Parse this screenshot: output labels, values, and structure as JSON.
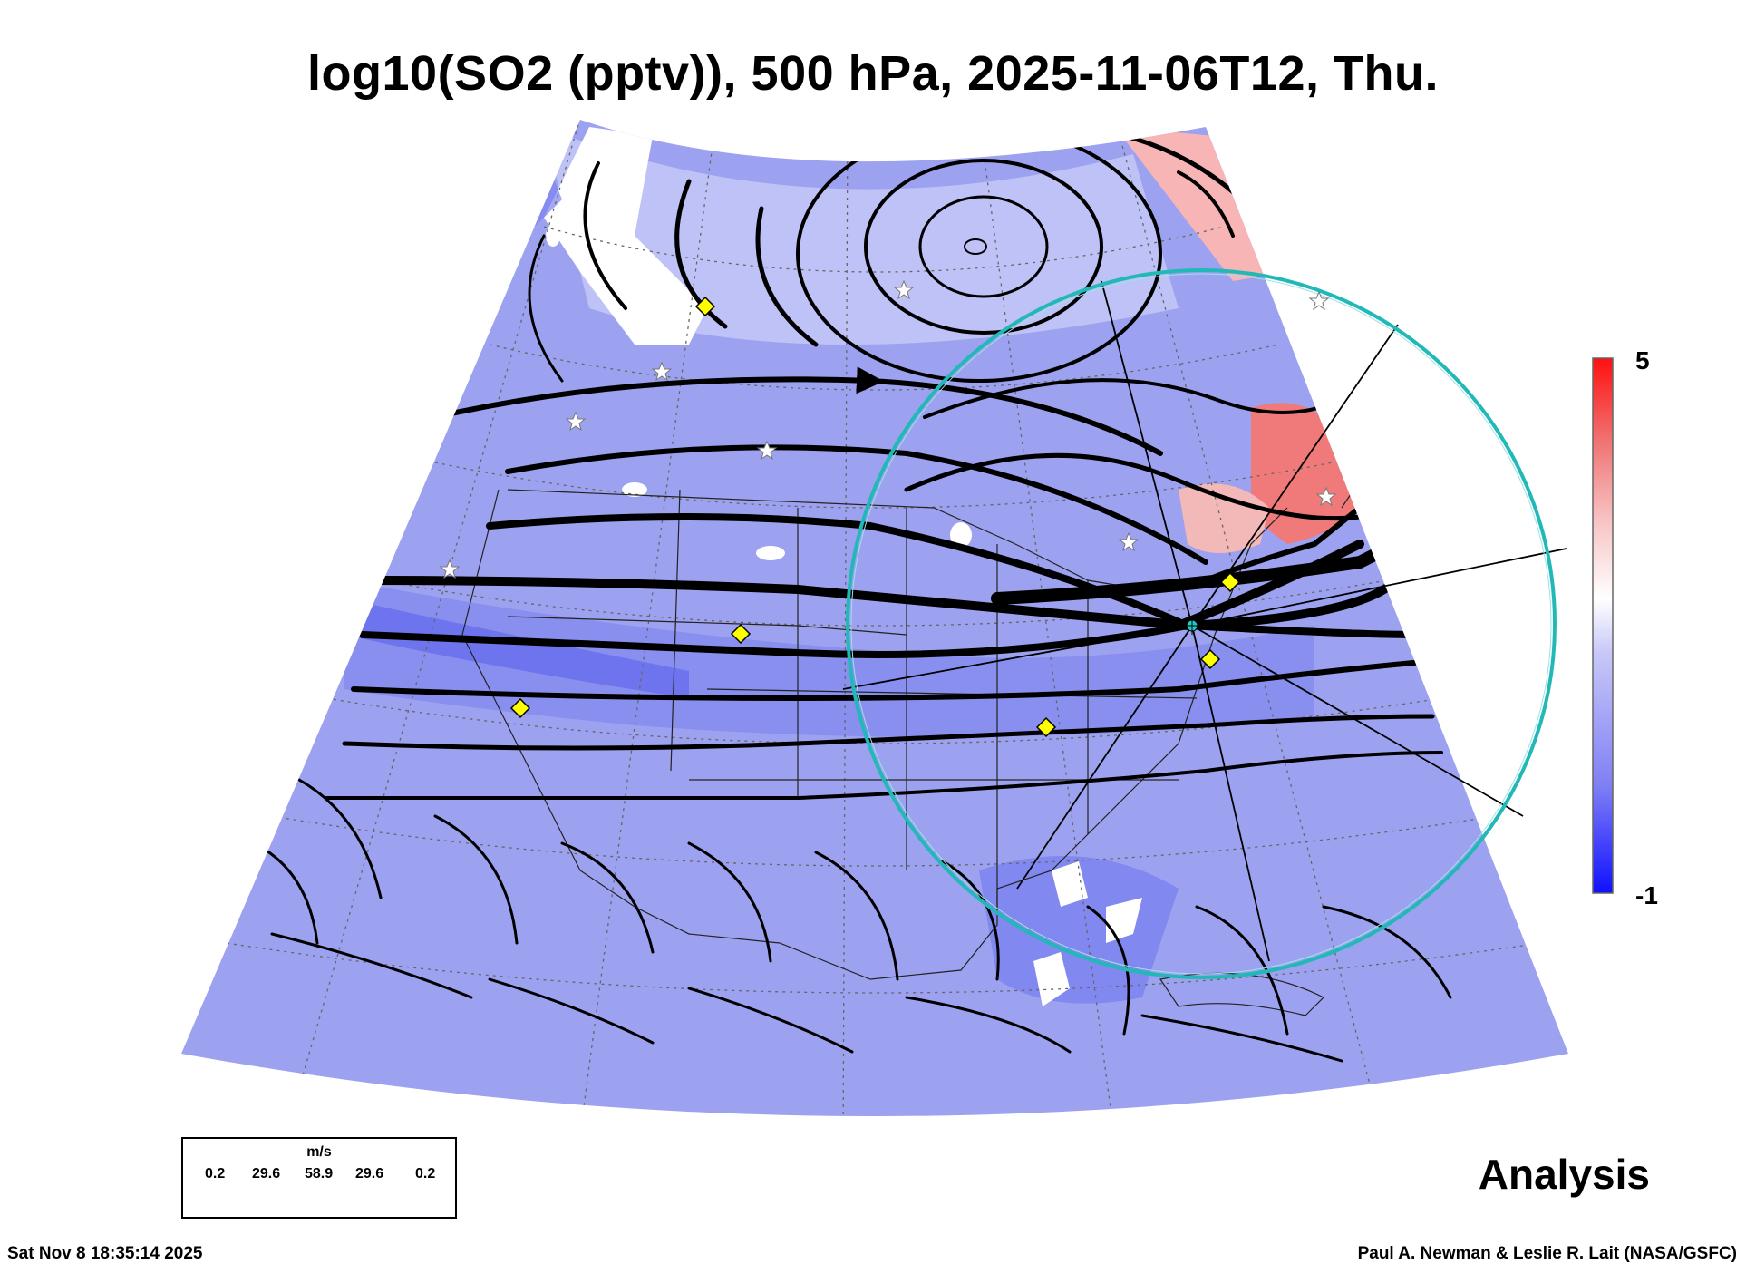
{
  "title": "log10(SO2 (pptv)), 500 hPa, 2025-11-06T12, Thu.",
  "colorbar": {
    "max_label": "5",
    "min_label": "-1",
    "colors": [
      "#1010ff",
      "#7f7ff5",
      "#c8c8f8",
      "#ffffff",
      "#f7c2c2",
      "#f07070",
      "#ff1010"
    ]
  },
  "legend": {
    "unit": "m/s",
    "values": [
      "0.2",
      "29.6",
      "58.9",
      "29.6",
      "0.2"
    ]
  },
  "stamp": "Analysis",
  "footer": {
    "timestamp": "Sat Nov  8 18:35:14 2025",
    "credit": "Paul A. Newman & Leslie R. Lait (NASA/GSFC)"
  },
  "colors": {
    "field_base": "#9aa0ef",
    "field_deep": "#6a6ff0",
    "high_so2": "#f07a7a",
    "circle": "#22b8b8",
    "marker": "#ffff00"
  }
}
